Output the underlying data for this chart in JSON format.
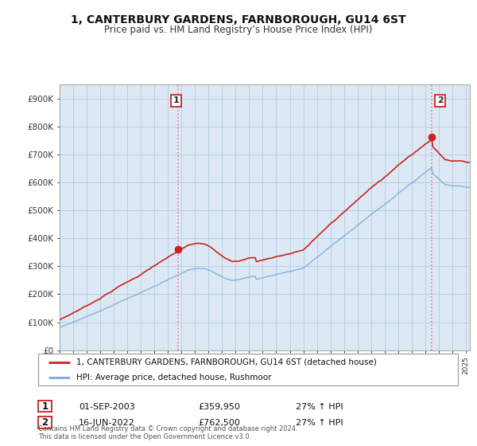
{
  "title": "1, CANTERBURY GARDENS, FARNBOROUGH, GU14 6ST",
  "subtitle": "Price paid vs. HM Land Registry’s House Price Index (HPI)",
  "ylim": [
    0,
    950000
  ],
  "yticks": [
    0,
    100000,
    200000,
    300000,
    400000,
    500000,
    600000,
    700000,
    800000,
    900000
  ],
  "ytick_labels": [
    "£0",
    "£100K",
    "£200K",
    "£300K",
    "£400K",
    "£500K",
    "£600K",
    "£700K",
    "£800K",
    "£900K"
  ],
  "legend_line1": "1, CANTERBURY GARDENS, FARNBOROUGH, GU14 6ST (detached house)",
  "legend_line2": "HPI: Average price, detached house, Rushmoor",
  "annotation1_date": "01-SEP-2003",
  "annotation1_price": "£359,950",
  "annotation1_hpi": "27% ↑ HPI",
  "annotation2_date": "16-JUN-2022",
  "annotation2_price": "£762,500",
  "annotation2_hpi": "27% ↑ HPI",
  "footer": "Contains HM Land Registry data © Crown copyright and database right 2024.\nThis data is licensed under the Open Government Licence v3.0.",
  "red_color": "#cc2222",
  "blue_color": "#7aaadd",
  "bg_plot_color": "#dce9f5",
  "background_color": "#ffffff",
  "grid_color": "#b8cfe0",
  "sale1_x": 2003.75,
  "sale1_y": 359950,
  "sale2_x": 2022.46,
  "sale2_y": 762500,
  "xlim_left": 1995,
  "xlim_right": 2025.3
}
